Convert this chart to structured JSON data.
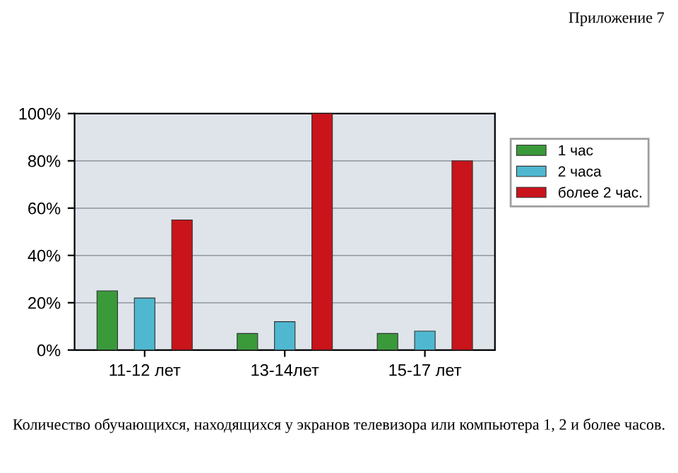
{
  "chart_data": {
    "type": "bar",
    "categories": [
      "11-12 лет",
      "13-14лет",
      "15-17 лет"
    ],
    "series": [
      {
        "name": "1 час",
        "color": "#3a9a3a",
        "values": [
          25,
          7,
          7
        ]
      },
      {
        "name": "2 часа",
        "color": "#4fb8d0",
        "values": [
          22,
          12,
          8
        ]
      },
      {
        "name": "более 2 час.",
        "color": "#c8141a",
        "values": [
          55,
          100,
          80
        ]
      }
    ],
    "ylim": [
      0,
      100
    ],
    "yticks": [
      {
        "value": 0,
        "label": "0%"
      },
      {
        "value": 20,
        "label": "20%"
      },
      {
        "value": 40,
        "label": "40%"
      },
      {
        "value": 60,
        "label": "60%"
      },
      {
        "value": 80,
        "label": "80%"
      },
      {
        "value": 100,
        "label": "100%"
      }
    ],
    "grid": "y",
    "legend": "right",
    "annotations": [
      "Приложение 7",
      "Количество обучающихся, находящихся у экранов телевизора или компьютера 1, 2 и более часов."
    ]
  }
}
